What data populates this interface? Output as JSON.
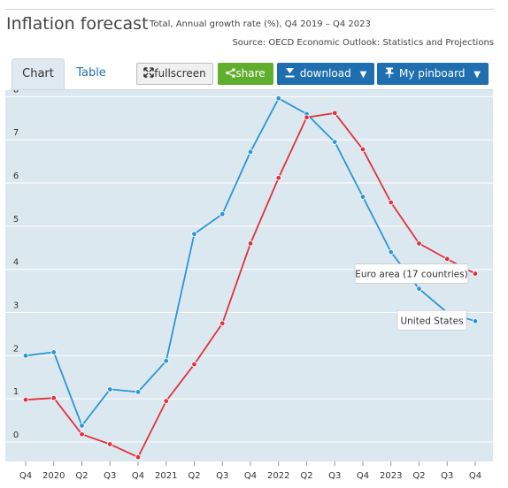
{
  "header": {
    "title": "Inflation forecast",
    "subtitle": "Total, Annual growth rate (%), Q4 2019 – Q4 2023",
    "source": "Source: OECD Economic Outlook: Statistics and Projections"
  },
  "tabs": [
    {
      "label": "Chart",
      "active": true
    },
    {
      "label": "Table",
      "active": false
    }
  ],
  "toolbar": {
    "fullscreen_label": "fullscreen",
    "share_label": "share",
    "download_label": "download",
    "pinboard_label": "My pinboard"
  },
  "colors": {
    "euro_area": "#e0323c",
    "united_states": "#2a96d6",
    "plot_background": "#dce8f0",
    "share_button": "#5fae2e",
    "primary_button": "#1f6fb0"
  },
  "chart_data": {
    "type": "line",
    "title": "Inflation forecast",
    "categories": [
      "Q4",
      "2020",
      "Q2",
      "Q3",
      "Q4",
      "2021",
      "Q2",
      "Q3",
      "Q4",
      "2022",
      "Q2",
      "Q3",
      "Q4",
      "2023",
      "Q2",
      "Q3",
      "Q4"
    ],
    "y_ticks": [
      0,
      1,
      2,
      3,
      4,
      5,
      6,
      7,
      8
    ],
    "ylim": [
      -0.45,
      8.15
    ],
    "grid": true,
    "series": [
      {
        "name": "United States",
        "color": "#2a96d6",
        "values": [
          2.0,
          2.08,
          0.38,
          1.22,
          1.16,
          1.88,
          4.82,
          5.28,
          6.72,
          7.96,
          7.6,
          6.95,
          5.68,
          4.4,
          3.55,
          3.0,
          2.8
        ]
      },
      {
        "name": "Euro area (17 countries)",
        "color": "#e0323c",
        "values": [
          0.98,
          1.02,
          0.18,
          -0.05,
          -0.35,
          0.95,
          1.8,
          2.75,
          4.6,
          6.12,
          7.52,
          7.62,
          6.78,
          5.55,
          4.6,
          4.24,
          3.9
        ]
      }
    ],
    "annotations": [
      {
        "series": 1,
        "text": "Euro area (17 countries)"
      },
      {
        "series": 0,
        "text": "United States"
      }
    ]
  }
}
